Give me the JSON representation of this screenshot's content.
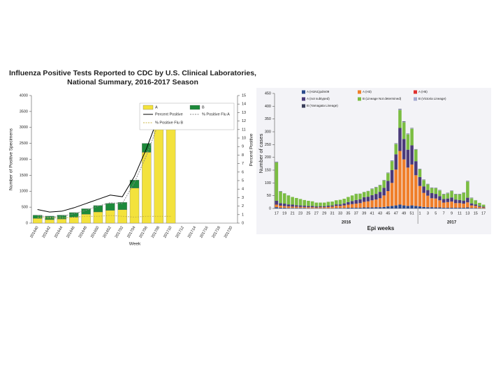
{
  "chart_data": [
    {
      "type": "bar",
      "title": [
        "Influenza Positive Tests Reported to CDC by U.S. Clinical Laboratories,",
        "National Summary, 2016-2017 Season"
      ],
      "y_label": "Number of Positive Specimens",
      "y2_label": "Percent Positive",
      "x_label": "Week",
      "categories": [
        "201640",
        "201642",
        "201644",
        "201646",
        "201648",
        "201650",
        "201652",
        "201702",
        "201704",
        "201706",
        "201708",
        "201710",
        "201712",
        "201714",
        "201716",
        "201718",
        "201720"
      ],
      "series": [
        {
          "name": "A",
          "color": "#f3e23c",
          "values": [
            150,
            110,
            130,
            180,
            280,
            350,
            400,
            420,
            1100,
            2220,
            3200,
            3250,
            null,
            null,
            null,
            null,
            null
          ]
        },
        {
          "name": "B",
          "color": "#1d8a3a",
          "values": [
            100,
            110,
            120,
            150,
            170,
            200,
            220,
            230,
            250,
            280,
            300,
            300,
            null,
            null,
            null,
            null,
            null
          ]
        },
        {
          "name": "Percent Positive",
          "color": "#000000",
          "axis": "y2",
          "values": [
            1.6,
            1.3,
            1.4,
            1.8,
            2.3,
            2.8,
            3.3,
            3.1,
            5.5,
            8.8,
            12.6,
            14,
            null,
            null,
            null,
            null,
            null
          ]
        },
        {
          "name": "% Positive Flu A",
          "color": "#888888",
          "axis": "y2",
          "dash": true,
          "values": [
            0.9,
            0.7,
            0.8,
            1.1,
            1.5,
            2,
            2.4,
            2.3,
            4.8,
            8,
            11.8,
            13.2,
            null,
            null,
            null,
            null,
            null
          ]
        },
        {
          "name": "% Positive Flu B",
          "color": "#c9b640",
          "axis": "y2",
          "dash": true,
          "values": [
            0.7,
            0.6,
            0.6,
            0.7,
            0.8,
            0.8,
            0.9,
            0.8,
            0.7,
            0.8,
            0.8,
            0.8,
            null,
            null,
            null,
            null,
            null
          ]
        }
      ],
      "ylim": [
        0,
        4000
      ],
      "yticks": [
        0,
        500,
        1000,
        1500,
        2000,
        2500,
        3000,
        3500,
        4000
      ],
      "y2lim": [
        0,
        15
      ],
      "y2ticks": [
        0,
        1,
        2,
        3,
        4,
        5,
        6,
        7,
        8,
        9,
        10,
        11,
        12,
        13,
        14,
        15
      ]
    },
    {
      "type": "bar",
      "y_label": "Number of cases",
      "x_label": "Epi weeks",
      "year_labels": [
        "2016",
        "2017"
      ],
      "categories": [
        "17",
        null,
        "19",
        null,
        "21",
        null,
        "23",
        null,
        "25",
        null,
        "27",
        null,
        "29",
        null,
        "31",
        null,
        "33",
        null,
        "35",
        null,
        "37",
        null,
        "39",
        null,
        "41",
        null,
        "43",
        null,
        "45",
        null,
        "47",
        null,
        "49",
        null,
        "51",
        null,
        "1",
        null,
        "3",
        null,
        "5",
        null,
        "7",
        null,
        "9",
        null,
        "11",
        null,
        "13",
        null,
        "15",
        null,
        "17"
      ],
      "series": [
        {
          "name": "A (H1N1)pdm09",
          "color": "#2b4a8c",
          "values": [
            5,
            3,
            3,
            2,
            2,
            2,
            2,
            2,
            1,
            1,
            1,
            1,
            1,
            1,
            1,
            2,
            2,
            2,
            3,
            3,
            3,
            3,
            4,
            4,
            4,
            5,
            5,
            6,
            8,
            10,
            12,
            15,
            12,
            10,
            12,
            10,
            8,
            6,
            5,
            5,
            4,
            4,
            3,
            3,
            3,
            3,
            3,
            3,
            4,
            2,
            2,
            1,
            1
          ]
        },
        {
          "name": "A (H3)",
          "color": "#f07f2a",
          "values": [
            10,
            8,
            6,
            6,
            5,
            5,
            4,
            4,
            4,
            4,
            3,
            4,
            4,
            5,
            6,
            8,
            8,
            10,
            12,
            14,
            16,
            18,
            22,
            24,
            28,
            30,
            35,
            45,
            60,
            90,
            140,
            210,
            180,
            150,
            160,
            120,
            80,
            55,
            45,
            35,
            35,
            28,
            20,
            22,
            24,
            18,
            18,
            16,
            20,
            10,
            8,
            5,
            3
          ]
        },
        {
          "name": "A (H5)",
          "color": "#e0302f",
          "values": [
            0,
            0,
            0,
            0,
            0,
            0,
            0,
            0,
            0,
            0,
            0,
            0,
            0,
            0,
            0,
            0,
            0,
            0,
            0,
            0,
            0,
            0,
            0,
            0,
            0,
            0,
            0,
            0,
            0,
            0,
            0,
            0,
            0,
            0,
            0,
            0,
            0,
            0,
            0,
            0,
            0,
            0,
            0,
            0,
            0,
            0,
            0,
            0,
            0,
            0,
            0,
            0,
            0
          ]
        },
        {
          "name": "A (not subtyped)",
          "color": "#4b3b7a",
          "values": [
            15,
            10,
            10,
            8,
            8,
            6,
            6,
            5,
            5,
            5,
            4,
            4,
            4,
            5,
            5,
            6,
            6,
            8,
            10,
            12,
            14,
            15,
            18,
            18,
            20,
            22,
            25,
            30,
            40,
            50,
            60,
            90,
            80,
            70,
            75,
            55,
            35,
            25,
            22,
            20,
            18,
            16,
            14,
            14,
            16,
            14,
            12,
            12,
            18,
            8,
            6,
            4,
            3
          ]
        },
        {
          "name": "B (Lineage Not determined)",
          "color": "#7bbd42",
          "values": [
            150,
            45,
            40,
            35,
            30,
            28,
            25,
            22,
            20,
            18,
            15,
            14,
            14,
            15,
            15,
            16,
            18,
            18,
            20,
            22,
            24,
            22,
            20,
            22,
            24,
            25,
            25,
            28,
            30,
            35,
            40,
            70,
            65,
            60,
            65,
            45,
            30,
            25,
            22,
            20,
            22,
            22,
            18,
            20,
            25,
            20,
            22,
            30,
            63,
            20,
            16,
            12,
            8
          ]
        },
        {
          "name": "B (Victoria Lineage)",
          "color": "#a5a9d0",
          "values": [
            2,
            1,
            1,
            1,
            0,
            0,
            0,
            0,
            0,
            0,
            0,
            0,
            0,
            0,
            0,
            0,
            0,
            0,
            0,
            0,
            1,
            1,
            1,
            1,
            1,
            1,
            1,
            1,
            1,
            2,
            2,
            2,
            2,
            2,
            2,
            1,
            1,
            1,
            1,
            1,
            1,
            1,
            1,
            1,
            1,
            1,
            1,
            1,
            2,
            1,
            1,
            0,
            0
          ]
        },
        {
          "name": "B (Yamagata Lineage)",
          "color": "#3a3e5a",
          "values": [
            1,
            1,
            0,
            0,
            0,
            0,
            0,
            0,
            0,
            0,
            0,
            0,
            0,
            0,
            0,
            0,
            0,
            0,
            0,
            0,
            0,
            0,
            0,
            0,
            1,
            1,
            1,
            1,
            1,
            1,
            1,
            2,
            2,
            1,
            1,
            1,
            1,
            1,
            1,
            1,
            1,
            1,
            1,
            1,
            1,
            1,
            1,
            1,
            1,
            1,
            0,
            0,
            0
          ]
        }
      ],
      "ylim": [
        0,
        450
      ],
      "yticks": [
        0,
        50,
        100,
        150,
        200,
        250,
        300,
        350,
        400,
        450
      ]
    }
  ]
}
